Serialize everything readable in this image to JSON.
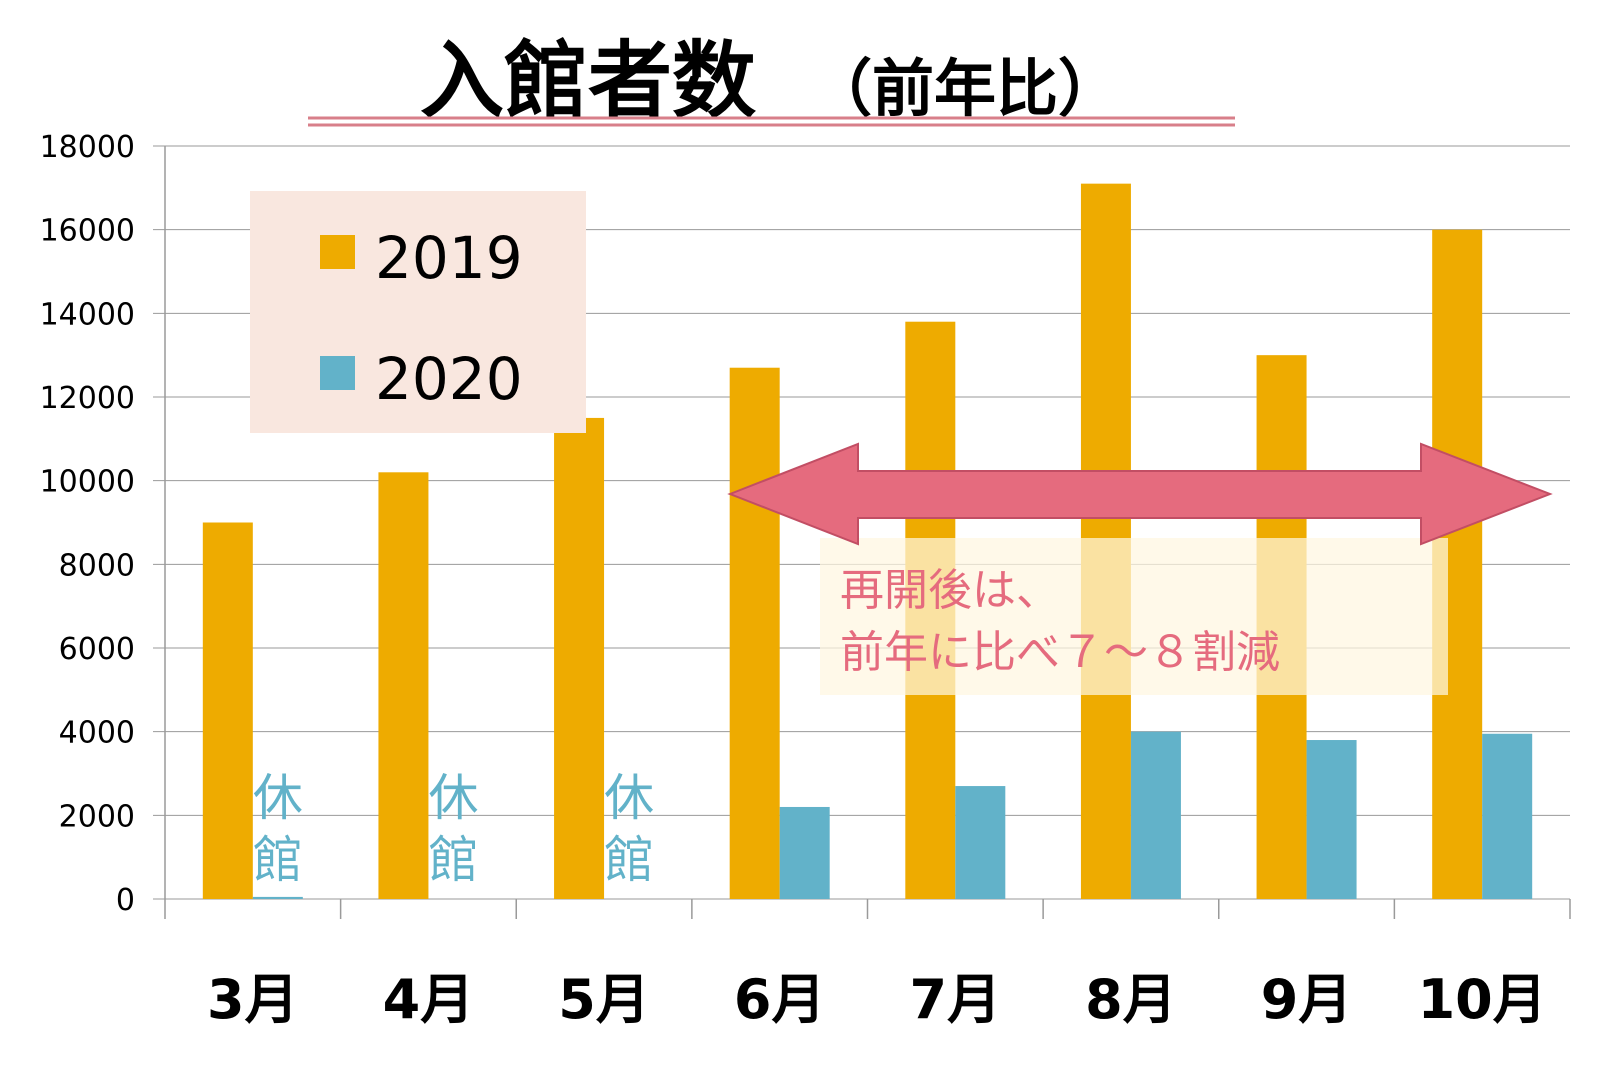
{
  "chart_data": {
    "type": "bar",
    "title": "入館者数",
    "subtitle": "（前年比）",
    "categories": [
      "3月",
      "4月",
      "5月",
      "6月",
      "7月",
      "8月",
      "9月",
      "10月"
    ],
    "series": [
      {
        "name": "2019",
        "color": "#eeab00",
        "values": [
          9000,
          10200,
          11500,
          12700,
          13800,
          17100,
          13000,
          16000
        ]
      },
      {
        "name": "2020",
        "color": "#62b2c9",
        "values": [
          50,
          0,
          0,
          2200,
          2700,
          4000,
          3800,
          3950
        ]
      }
    ],
    "ylim": [
      0,
      18000
    ],
    "yticks": [
      "0",
      "2000",
      "4000",
      "6000",
      "8000",
      "10000",
      "12000",
      "14000",
      "16000",
      "18000"
    ],
    "grid": true,
    "legend_position": "top-left",
    "closed_label": "休館",
    "closed_categories": [
      "3月",
      "4月",
      "5月"
    ],
    "annotation": {
      "line1": "再開後は、",
      "line2": "前年に比べ７～８割減",
      "arrow_color": "#e56b7e",
      "text_color": "#e56b7e"
    }
  }
}
